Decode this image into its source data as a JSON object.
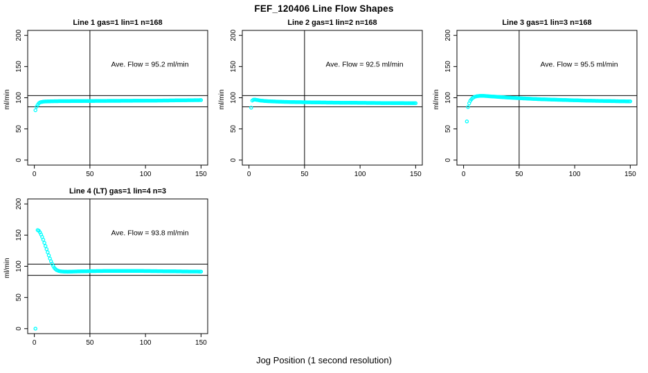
{
  "figure": {
    "main_title": "FEF_120406  Line Flow Shapes",
    "x_axis_label": "Jog Position (1 second resolution)",
    "y_axis_label": "ml/min",
    "point_color": "#00FFFF",
    "axis_color": "#000000",
    "background_color": "#ffffff",
    "marker": "open-circle"
  },
  "chart_data": [
    {
      "type": "scatter",
      "title": "Line 1 gas=1 lin=1 n=168",
      "annotation": "Ave. Flow =  95.2  ml/min",
      "ave_flow_ml_min": 95.2,
      "n": 168,
      "xlabel": "Jog Position (1 second resolution)",
      "ylabel": "ml/min",
      "xlim": [
        0,
        150
      ],
      "ylim": [
        0,
        200
      ],
      "x_ticks": [
        0,
        50,
        100,
        150
      ],
      "y_ticks": [
        0,
        50,
        100,
        150,
        200
      ],
      "grid": false,
      "reference_lines": {
        "horizontal": [
          85.5,
          103.5
        ],
        "vertical": [
          50
        ]
      },
      "annotation_pos": [
        104,
        150
      ],
      "outliers": [
        [
          1,
          80
        ]
      ],
      "keypoints": [
        [
          2,
          85.5
        ],
        [
          3,
          88.5
        ],
        [
          4,
          91
        ],
        [
          5,
          92.5
        ],
        [
          6,
          93
        ],
        [
          8,
          93.8
        ],
        [
          10,
          94
        ],
        [
          15,
          94.3
        ],
        [
          20,
          94.5
        ],
        [
          30,
          94.6
        ],
        [
          40,
          94.7
        ],
        [
          50,
          94.8
        ],
        [
          60,
          94.9
        ],
        [
          70,
          95
        ],
        [
          80,
          95.1
        ],
        [
          90,
          95.2
        ],
        [
          100,
          95.3
        ],
        [
          110,
          95.4
        ],
        [
          120,
          95.6
        ],
        [
          130,
          95.8
        ],
        [
          140,
          96
        ],
        [
          150,
          96.2
        ]
      ]
    },
    {
      "type": "scatter",
      "title": "Line 2 gas=1 lin=2 n=168",
      "annotation": "Ave. Flow =  92.5  ml/min",
      "ave_flow_ml_min": 92.5,
      "n": 168,
      "xlabel": "Jog Position (1 second resolution)",
      "ylabel": "ml/min",
      "xlim": [
        0,
        150
      ],
      "ylim": [
        0,
        200
      ],
      "x_ticks": [
        0,
        50,
        100,
        150
      ],
      "y_ticks": [
        0,
        50,
        100,
        150,
        200
      ],
      "grid": false,
      "reference_lines": {
        "horizontal": [
          85.5,
          103.5
        ],
        "vertical": [
          50
        ]
      },
      "annotation_pos": [
        104,
        150
      ],
      "outliers": [
        [
          2,
          84
        ]
      ],
      "keypoints": [
        [
          3,
          95.5
        ],
        [
          4,
          96.8
        ],
        [
          5,
          97
        ],
        [
          6,
          96.8
        ],
        [
          8,
          96.2
        ],
        [
          10,
          95.6
        ],
        [
          14,
          94.8
        ],
        [
          20,
          94.2
        ],
        [
          30,
          93.5
        ],
        [
          40,
          93
        ],
        [
          50,
          92.8
        ],
        [
          60,
          92.5
        ],
        [
          70,
          92.3
        ],
        [
          80,
          92.1
        ],
        [
          90,
          92
        ],
        [
          100,
          91.8
        ],
        [
          110,
          91.7
        ],
        [
          120,
          91.5
        ],
        [
          130,
          91.4
        ],
        [
          140,
          91.3
        ],
        [
          150,
          91.2
        ]
      ]
    },
    {
      "type": "scatter",
      "title": "Line 3 gas=1 lin=3 n=168",
      "annotation": "Ave. Flow =  95.5  ml/min",
      "ave_flow_ml_min": 95.5,
      "n": 168,
      "xlabel": "Jog Position (1 second resolution)",
      "ylabel": "ml/min",
      "xlim": [
        0,
        150
      ],
      "ylim": [
        0,
        200
      ],
      "x_ticks": [
        0,
        50,
        100,
        150
      ],
      "y_ticks": [
        0,
        50,
        100,
        150,
        200
      ],
      "grid": false,
      "reference_lines": {
        "horizontal": [
          85.5,
          103.5
        ],
        "vertical": [
          50
        ]
      },
      "annotation_pos": [
        104,
        150
      ],
      "outliers": [
        [
          3,
          62
        ]
      ],
      "keypoints": [
        [
          4,
          85
        ],
        [
          5,
          91
        ],
        [
          6,
          95
        ],
        [
          7,
          97.5
        ],
        [
          8,
          99.5
        ],
        [
          10,
          101.5
        ],
        [
          12,
          102.5
        ],
        [
          15,
          103
        ],
        [
          18,
          103
        ],
        [
          22,
          102.5
        ],
        [
          26,
          102
        ],
        [
          30,
          101.5
        ],
        [
          40,
          100.3
        ],
        [
          50,
          99.3
        ],
        [
          60,
          98.4
        ],
        [
          70,
          97.6
        ],
        [
          80,
          97
        ],
        [
          90,
          96.4
        ],
        [
          100,
          95.9
        ],
        [
          110,
          95.4
        ],
        [
          120,
          95
        ],
        [
          130,
          94.7
        ],
        [
          140,
          94.4
        ],
        [
          150,
          94.2
        ]
      ]
    },
    {
      "type": "scatter",
      "title": "Line 4 (LT) gas=1 lin=4 n=3",
      "annotation": "Ave. Flow =  93.8  ml/min",
      "ave_flow_ml_min": 93.8,
      "n": 3,
      "xlabel": "Jog Position (1 second resolution)",
      "ylabel": "ml/min",
      "xlim": [
        0,
        150
      ],
      "ylim": [
        0,
        200
      ],
      "x_ticks": [
        0,
        50,
        100,
        150
      ],
      "y_ticks": [
        0,
        50,
        100,
        150,
        200
      ],
      "grid": false,
      "reference_lines": {
        "horizontal": [
          85.5,
          103.5
        ],
        "vertical": [
          50
        ]
      },
      "annotation_pos": [
        104,
        150
      ],
      "outliers": [
        [
          1,
          0
        ]
      ],
      "keypoints": [
        [
          3,
          158
        ],
        [
          4,
          157
        ],
        [
          5,
          154.5
        ],
        [
          6,
          151
        ],
        [
          7,
          147
        ],
        [
          8,
          142.5
        ],
        [
          9,
          137.5
        ],
        [
          10,
          132.5
        ],
        [
          11,
          127.5
        ],
        [
          12,
          122.5
        ],
        [
          13,
          117.5
        ],
        [
          14,
          112.5
        ],
        [
          15,
          108
        ],
        [
          16,
          104
        ],
        [
          17,
          100.5
        ],
        [
          18,
          97.5
        ],
        [
          19,
          95.5
        ],
        [
          20,
          94
        ],
        [
          22,
          92.5
        ],
        [
          24,
          91.8
        ],
        [
          27,
          91.4
        ],
        [
          30,
          91.3
        ],
        [
          40,
          91.8
        ],
        [
          50,
          92.2
        ],
        [
          60,
          92.4
        ],
        [
          70,
          92.5
        ],
        [
          80,
          92.5
        ],
        [
          90,
          92.5
        ],
        [
          100,
          92.4
        ],
        [
          110,
          92.2
        ],
        [
          120,
          92
        ],
        [
          130,
          91.8
        ],
        [
          140,
          91.6
        ],
        [
          150,
          91.5
        ]
      ]
    }
  ]
}
